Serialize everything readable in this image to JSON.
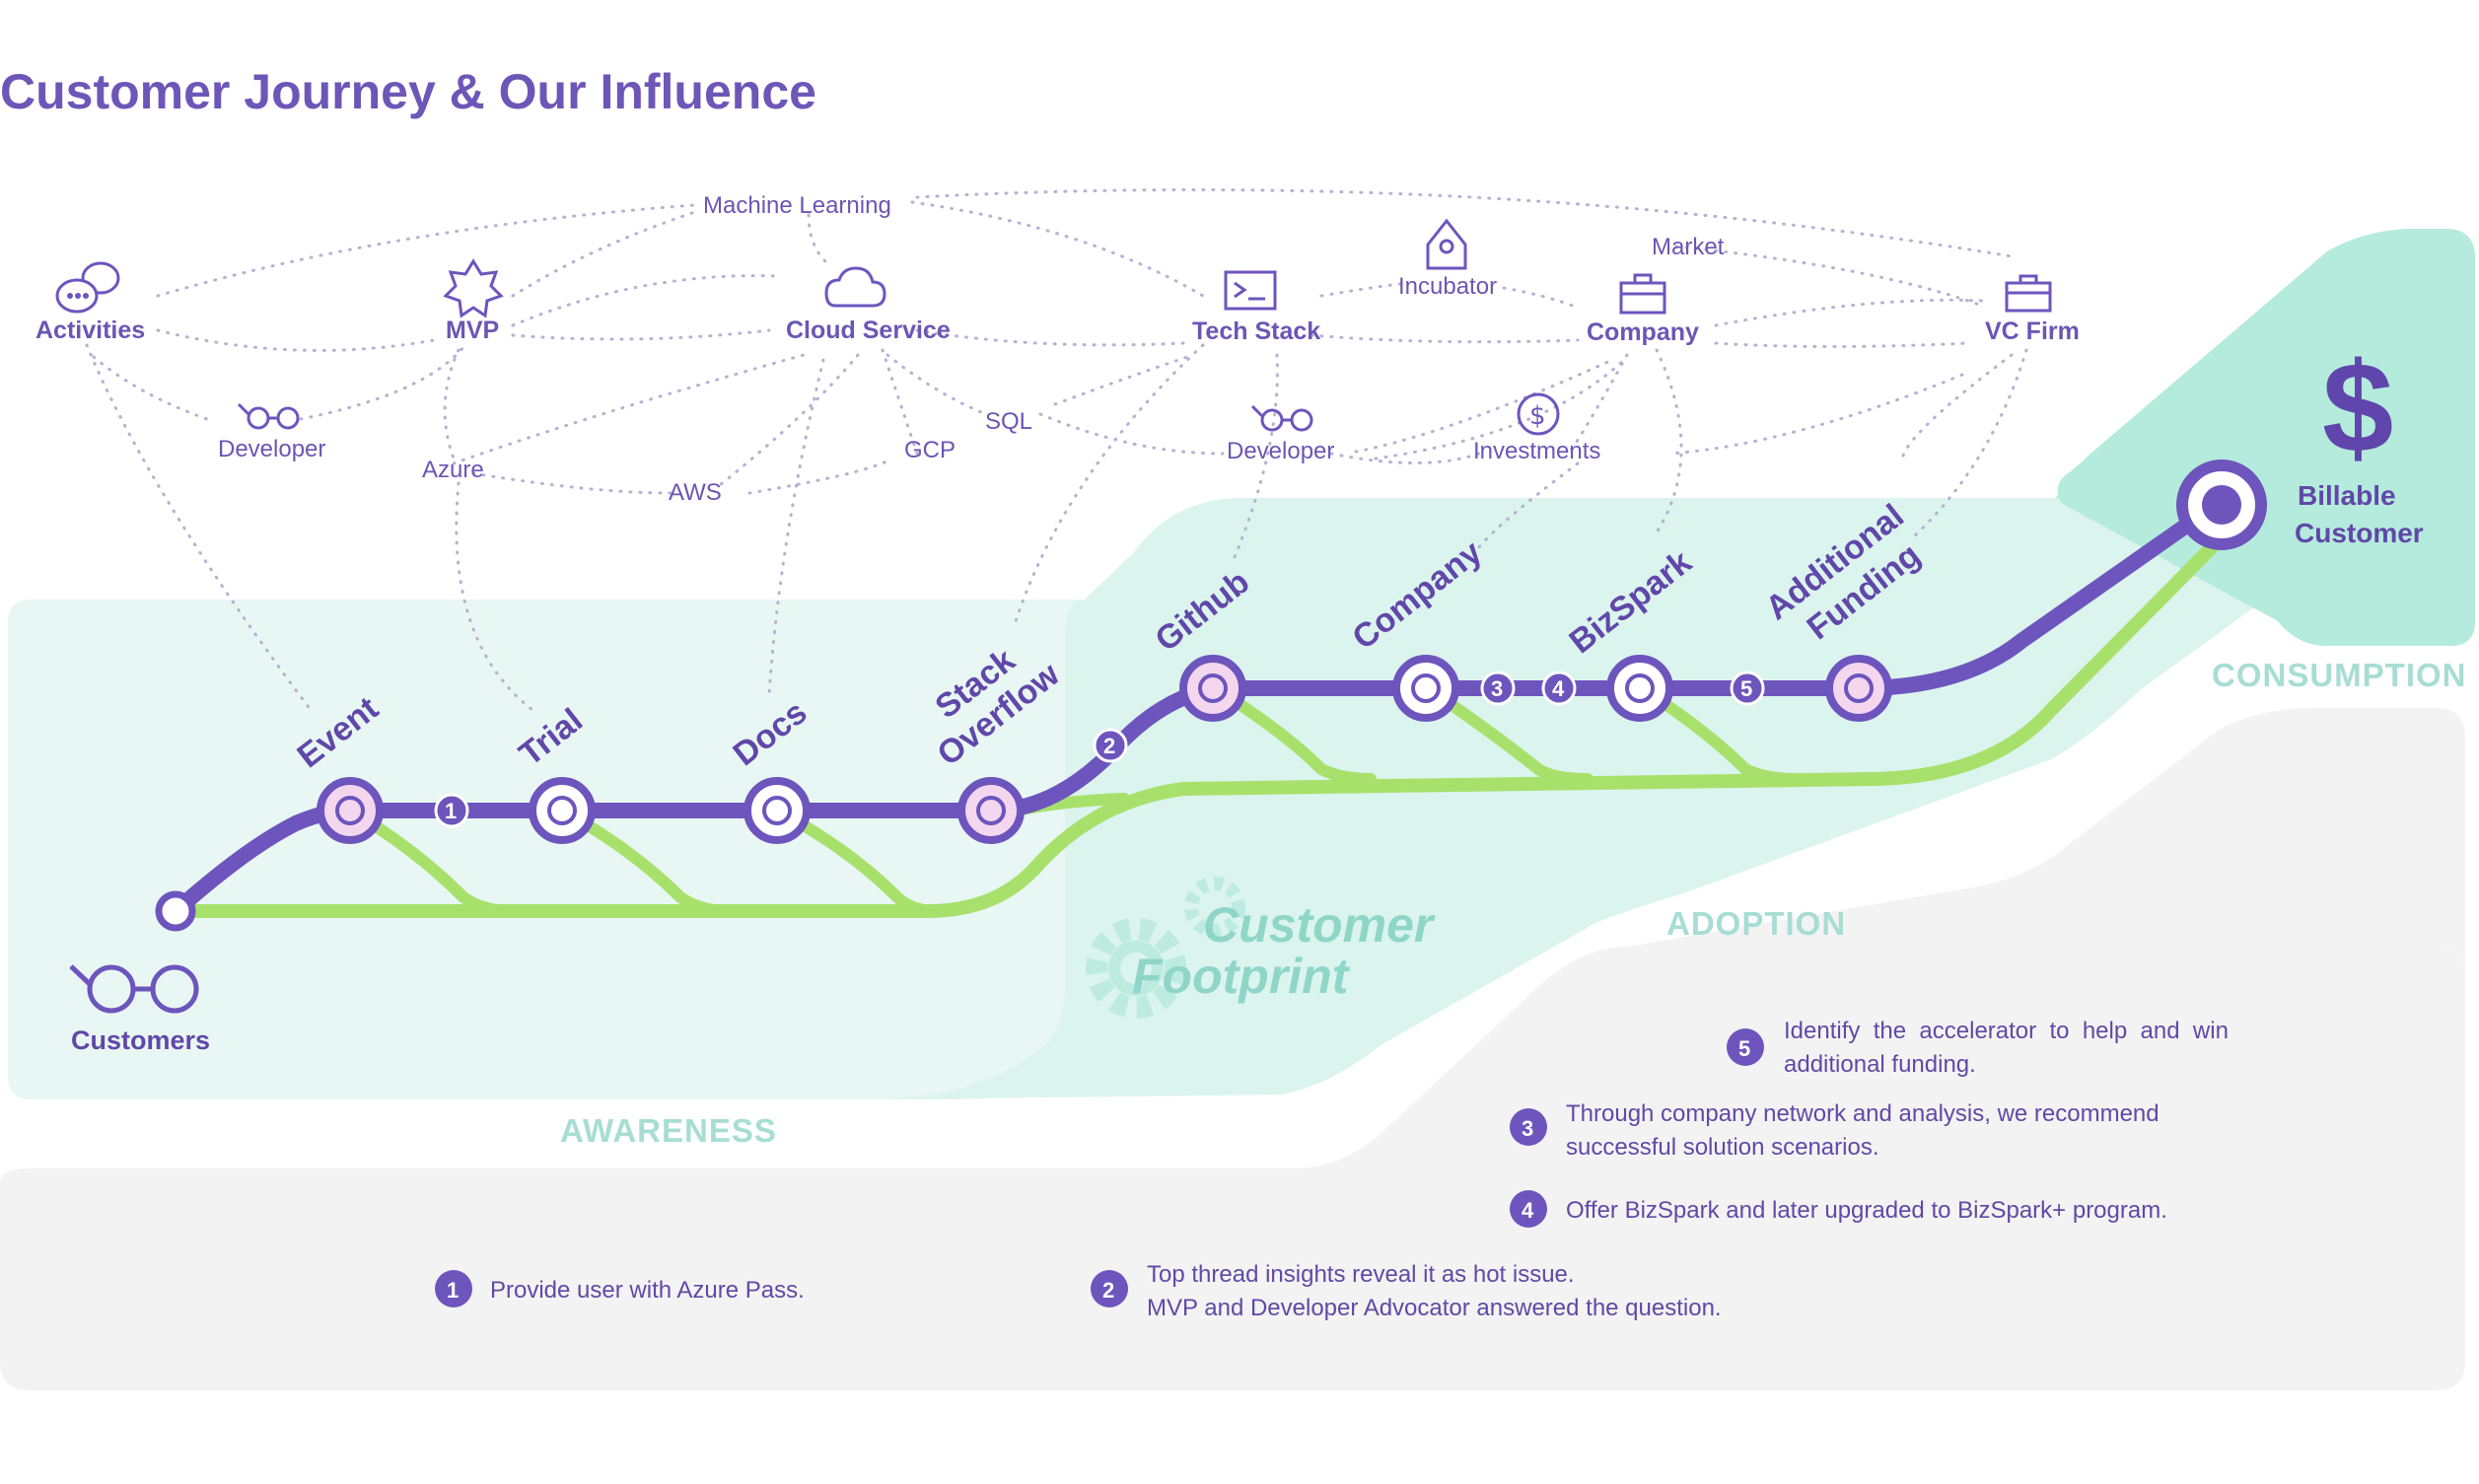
{
  "title": "Customer Journey & Our Influence",
  "colors": {
    "purple": "#6d55bd",
    "green": "#a7e16b",
    "teal_light": "#e3f6f1",
    "teal": "#b5ebdc",
    "gray": "#f3f3f3"
  },
  "network": {
    "activities": "Activities",
    "mvp": "MVP",
    "cloud_service": "Cloud Service",
    "tech_stack": "Tech Stack",
    "company": "Company",
    "vc_firm": "VC Firm",
    "machine_learning": "Machine Learning",
    "market": "Market",
    "incubator": "Incubator",
    "developer_left": "Developer",
    "developer_mid": "Developer",
    "azure": "Azure",
    "aws": "AWS",
    "gcp": "GCP",
    "sql": "SQL",
    "investments": "Investments"
  },
  "stops": {
    "event": "Event",
    "trial": "Trial",
    "docs": "Docs",
    "stack_1": "Stack",
    "stack_2": "Overflow",
    "github": "Github",
    "company": "Company",
    "bizspark": "BizSpark",
    "funding_1": "Additional",
    "funding_2": "Funding"
  },
  "badges": [
    "1",
    "2",
    "3",
    "4",
    "5"
  ],
  "customers": "Customers",
  "billable_1": "Billable",
  "billable_2": "Customer",
  "money_symbol": "$",
  "footprint_1": "Customer",
  "footprint_2": "Footprint",
  "zones": {
    "awareness": "AWARENESS",
    "adoption": "ADOPTION",
    "consumption": "CONSUMPTION"
  },
  "notes": [
    {
      "num": "1",
      "lines": [
        "Provide user with Azure Pass."
      ]
    },
    {
      "num": "2",
      "lines": [
        "Top thread insights reveal it as hot issue.",
        "MVP and Developer Advocator answered the question."
      ]
    },
    {
      "num": "3",
      "lines": [
        "Through company network and analysis, we recommend",
        "successful solution scenarios."
      ]
    },
    {
      "num": "4",
      "lines": [
        "Offer BizSpark and later upgraded to BizSpark+ program."
      ]
    },
    {
      "num": "5",
      "lines": [
        "Identify  the  accelerator  to  help  and  win",
        "additional funding."
      ]
    }
  ]
}
